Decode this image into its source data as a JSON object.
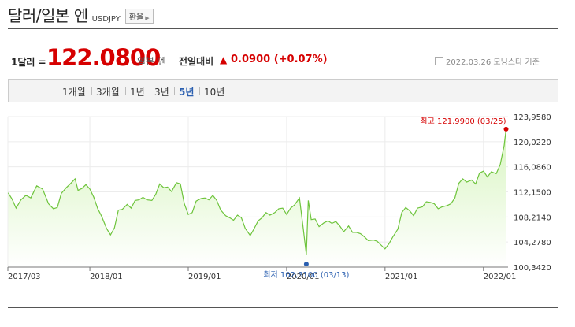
{
  "header": {
    "title": "달러/일본 엔",
    "ticker": "USDJPY",
    "fx_button": "환율"
  },
  "quote": {
    "unit_label": "1달러 =",
    "price": "122.0800",
    "price_unit": "일본 엔",
    "change_label": "전일대비",
    "change_icon": "up-triangle-icon",
    "change": "0.0900 (+0.07%)",
    "source": "2022.03.26  모닝스타 기준"
  },
  "tabs": [
    {
      "label": "1개월",
      "selected": false
    },
    {
      "label": "3개월",
      "selected": false
    },
    {
      "label": "1년",
      "selected": false
    },
    {
      "label": "3년",
      "selected": false
    },
    {
      "label": "5년",
      "selected": true
    },
    {
      "label": "10년",
      "selected": false
    }
  ],
  "colors": {
    "accent": "#d60000",
    "line": "#6ec43c",
    "area_top": "#d8f5c0",
    "selected_tab": "#2a5fb0",
    "max_marker": "#d60000",
    "min_marker": "#2a5fb0"
  },
  "chart_data": {
    "type": "area",
    "y_ticks": [
      "123,9580",
      "120,0220",
      "116,0860",
      "112,1500",
      "108,2140",
      "104,2780",
      "100,3420"
    ],
    "ylim": [
      100.342,
      123.958
    ],
    "x_ticks": [
      {
        "label": "2017/03",
        "t": 2017.167
      },
      {
        "label": "2018/01",
        "t": 2018.0
      },
      {
        "label": "2019/01",
        "t": 2019.0
      },
      {
        "label": "2020/01",
        "t": 2020.0
      },
      {
        "label": "2021/01",
        "t": 2021.0
      },
      {
        "label": "2022/01",
        "t": 2022.0
      }
    ],
    "xlim": [
      2017.167,
      2022.25
    ],
    "max_label": "최고 121,9900 (03/25)",
    "max_point": {
      "t": 2022.23,
      "v": 121.99
    },
    "min_label": "최저 102,3100 (03/13)",
    "min_point": {
      "t": 2020.2,
      "v": 102.31
    },
    "series": [
      {
        "points": [
          [
            2017.17,
            112.0
          ],
          [
            2017.21,
            111.0
          ],
          [
            2017.25,
            109.6
          ],
          [
            2017.3,
            110.9
          ],
          [
            2017.35,
            111.6
          ],
          [
            2017.4,
            111.2
          ],
          [
            2017.46,
            113.1
          ],
          [
            2017.52,
            112.6
          ],
          [
            2017.58,
            110.3
          ],
          [
            2017.63,
            109.5
          ],
          [
            2017.67,
            109.7
          ],
          [
            2017.71,
            111.9
          ],
          [
            2017.76,
            112.8
          ],
          [
            2017.8,
            113.4
          ],
          [
            2017.85,
            114.2
          ],
          [
            2017.88,
            112.4
          ],
          [
            2017.92,
            112.7
          ],
          [
            2017.96,
            113.3
          ],
          [
            2018.0,
            112.6
          ],
          [
            2018.04,
            111.3
          ],
          [
            2018.08,
            109.5
          ],
          [
            2018.12,
            108.3
          ],
          [
            2018.17,
            106.4
          ],
          [
            2018.21,
            105.4
          ],
          [
            2018.25,
            106.5
          ],
          [
            2018.29,
            109.3
          ],
          [
            2018.33,
            109.4
          ],
          [
            2018.38,
            110.2
          ],
          [
            2018.42,
            109.6
          ],
          [
            2018.46,
            110.8
          ],
          [
            2018.5,
            110.9
          ],
          [
            2018.54,
            111.3
          ],
          [
            2018.58,
            110.9
          ],
          [
            2018.63,
            110.8
          ],
          [
            2018.67,
            111.8
          ],
          [
            2018.71,
            113.4
          ],
          [
            2018.75,
            112.8
          ],
          [
            2018.79,
            112.9
          ],
          [
            2018.83,
            112.2
          ],
          [
            2018.88,
            113.6
          ],
          [
            2018.92,
            113.4
          ],
          [
            2018.96,
            110.3
          ],
          [
            2019.0,
            108.6
          ],
          [
            2019.04,
            108.9
          ],
          [
            2019.08,
            110.7
          ],
          [
            2019.13,
            111.1
          ],
          [
            2019.17,
            111.2
          ],
          [
            2019.21,
            110.9
          ],
          [
            2019.25,
            111.6
          ],
          [
            2019.29,
            110.8
          ],
          [
            2019.33,
            109.3
          ],
          [
            2019.38,
            108.4
          ],
          [
            2019.42,
            108.1
          ],
          [
            2019.46,
            107.7
          ],
          [
            2019.5,
            108.5
          ],
          [
            2019.54,
            108.1
          ],
          [
            2019.58,
            106.4
          ],
          [
            2019.63,
            105.3
          ],
          [
            2019.67,
            106.4
          ],
          [
            2019.71,
            107.6
          ],
          [
            2019.75,
            108.1
          ],
          [
            2019.79,
            108.9
          ],
          [
            2019.83,
            108.5
          ],
          [
            2019.88,
            108.9
          ],
          [
            2019.92,
            109.5
          ],
          [
            2019.96,
            109.6
          ],
          [
            2020.0,
            108.6
          ],
          [
            2020.04,
            109.6
          ],
          [
            2020.08,
            110.1
          ],
          [
            2020.13,
            111.2
          ],
          [
            2020.17,
            106.2
          ],
          [
            2020.2,
            102.31
          ],
          [
            2020.22,
            110.8
          ],
          [
            2020.25,
            107.8
          ],
          [
            2020.29,
            107.9
          ],
          [
            2020.33,
            106.7
          ],
          [
            2020.38,
            107.3
          ],
          [
            2020.42,
            107.6
          ],
          [
            2020.46,
            107.2
          ],
          [
            2020.5,
            107.5
          ],
          [
            2020.54,
            106.8
          ],
          [
            2020.58,
            105.9
          ],
          [
            2020.63,
            106.8
          ],
          [
            2020.67,
            105.8
          ],
          [
            2020.71,
            105.8
          ],
          [
            2020.75,
            105.6
          ],
          [
            2020.79,
            105.1
          ],
          [
            2020.83,
            104.5
          ],
          [
            2020.88,
            104.6
          ],
          [
            2020.92,
            104.4
          ],
          [
            2020.96,
            103.8
          ],
          [
            2021.0,
            103.2
          ],
          [
            2021.04,
            104.0
          ],
          [
            2021.08,
            105.1
          ],
          [
            2021.13,
            106.3
          ],
          [
            2021.17,
            108.9
          ],
          [
            2021.21,
            109.7
          ],
          [
            2021.25,
            109.2
          ],
          [
            2021.29,
            108.4
          ],
          [
            2021.33,
            109.6
          ],
          [
            2021.38,
            109.8
          ],
          [
            2021.42,
            110.6
          ],
          [
            2021.46,
            110.5
          ],
          [
            2021.5,
            110.3
          ],
          [
            2021.54,
            109.5
          ],
          [
            2021.58,
            109.8
          ],
          [
            2021.63,
            110.0
          ],
          [
            2021.67,
            110.3
          ],
          [
            2021.71,
            111.2
          ],
          [
            2021.75,
            113.5
          ],
          [
            2021.79,
            114.2
          ],
          [
            2021.83,
            113.7
          ],
          [
            2021.88,
            114.0
          ],
          [
            2021.92,
            113.4
          ],
          [
            2021.96,
            115.1
          ],
          [
            2022.0,
            115.4
          ],
          [
            2022.04,
            114.5
          ],
          [
            2022.08,
            115.3
          ],
          [
            2022.13,
            115.0
          ],
          [
            2022.17,
            116.4
          ],
          [
            2022.21,
            119.4
          ],
          [
            2022.23,
            121.99
          ]
        ]
      }
    ]
  }
}
